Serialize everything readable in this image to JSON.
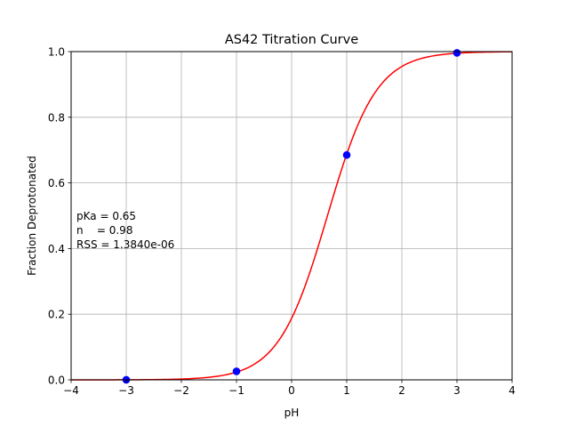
{
  "chart_data": {
    "type": "scatter",
    "title": "AS42 Titration Curve",
    "xlabel": "pH",
    "ylabel": "Fraction Deprotonated",
    "xlim": [
      -4,
      4
    ],
    "ylim": [
      0,
      1
    ],
    "x_ticks": [
      "−4",
      "−3",
      "−2",
      "−1",
      "0",
      "1",
      "2",
      "3",
      "4"
    ],
    "y_ticks": [
      "0.0",
      "0.2",
      "0.4",
      "0.6",
      "0.8",
      "1.0"
    ],
    "grid": true,
    "points": {
      "x": [
        -3,
        -1,
        1,
        3
      ],
      "y": [
        0.0002,
        0.026,
        0.685,
        0.996
      ],
      "color": "#0000ff"
    },
    "fit_curve": {
      "model": "hill",
      "pKa": 0.65,
      "n": 0.98,
      "color": "#ff0000"
    },
    "annotation": [
      "pKa = 0.65",
      "n    = 0.98",
      "RSS = 1.3840e-06"
    ]
  }
}
